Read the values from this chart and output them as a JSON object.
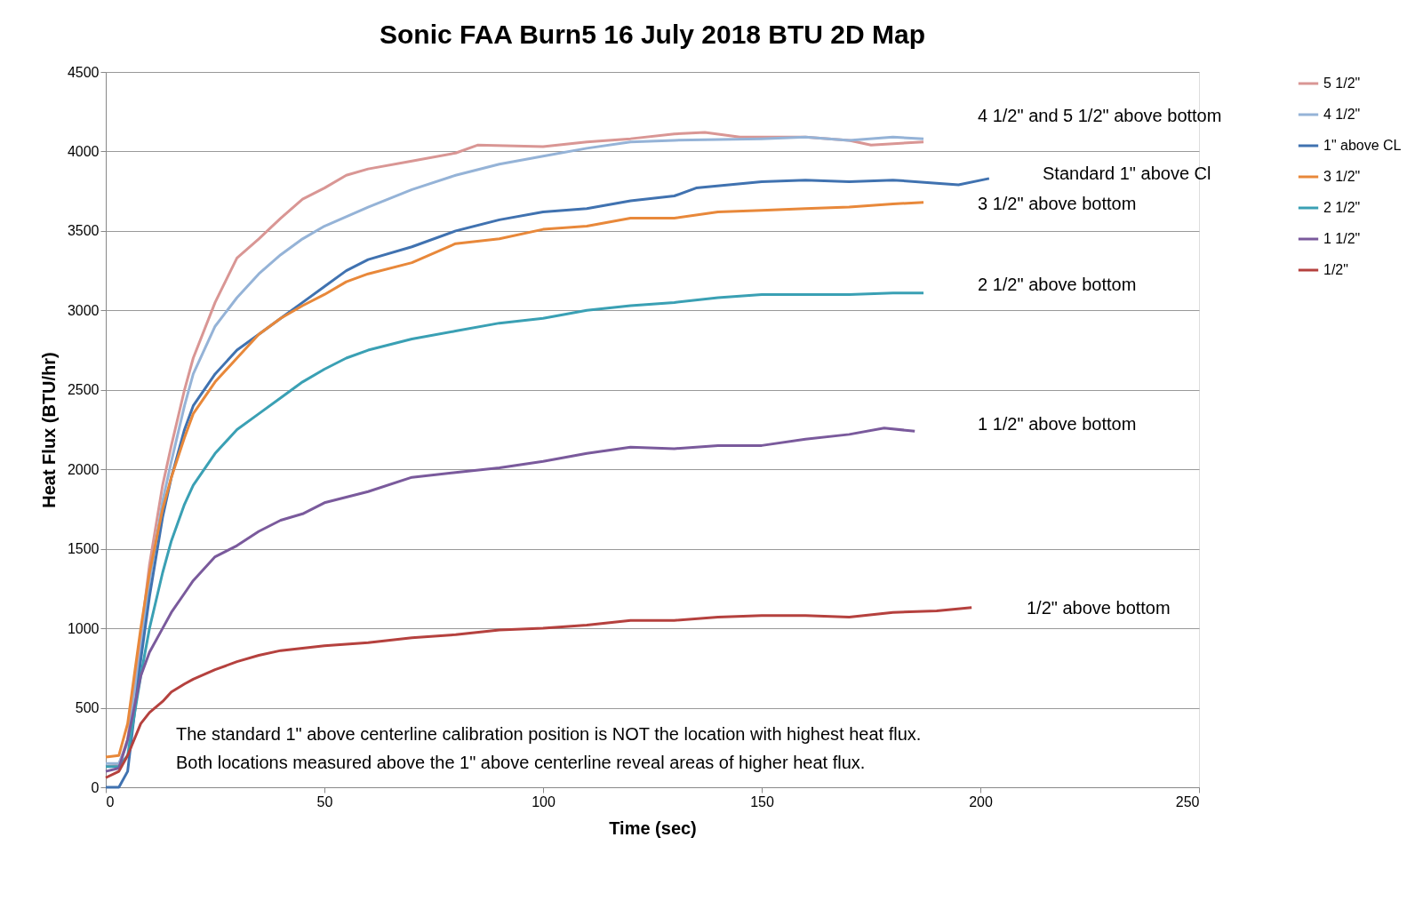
{
  "chart_data": {
    "type": "line",
    "title": "Sonic FAA Burn5 16 July 2018 BTU 2D Map",
    "xlabel": "Time (sec)",
    "ylabel": "Heat Flux (BTU/hr)",
    "xlim": [
      0,
      250
    ],
    "xticks": [
      0,
      50,
      100,
      150,
      200,
      250
    ],
    "ylim": [
      0,
      4500
    ],
    "yticks": [
      0,
      500,
      1000,
      1500,
      2000,
      2500,
      3000,
      3500,
      4000,
      4500
    ],
    "grid": "y",
    "legend": "right",
    "marker": "none",
    "line_style": "solid",
    "series": [
      {
        "name": "5 1/2\"",
        "color": "#d99694",
        "x": [
          0,
          3,
          5,
          8,
          10,
          13,
          15,
          18,
          20,
          25,
          30,
          35,
          40,
          45,
          50,
          55,
          60,
          70,
          80,
          85,
          100,
          110,
          120,
          130,
          137,
          145,
          160,
          170,
          175,
          187
        ],
        "values": [
          130,
          140,
          300,
          950,
          1400,
          1900,
          2150,
          2500,
          2700,
          3050,
          3330,
          3450,
          3580,
          3700,
          3770,
          3850,
          3890,
          3940,
          3990,
          4040,
          4030,
          4060,
          4080,
          4110,
          4120,
          4090,
          4090,
          4070,
          4040,
          4060
        ]
      },
      {
        "name": "4 1/2\"",
        "color": "#95b3d7",
        "x": [
          0,
          3,
          5,
          8,
          10,
          13,
          15,
          18,
          20,
          25,
          30,
          35,
          40,
          45,
          50,
          60,
          70,
          80,
          90,
          100,
          110,
          120,
          130,
          150,
          160,
          170,
          180,
          187
        ],
        "values": [
          150,
          150,
          280,
          850,
          1300,
          1800,
          2050,
          2400,
          2600,
          2900,
          3080,
          3230,
          3350,
          3450,
          3530,
          3650,
          3760,
          3850,
          3920,
          3970,
          4020,
          4060,
          4070,
          4080,
          4090,
          4070,
          4090,
          4080
        ]
      },
      {
        "name": "1\" above CL",
        "color": "#4072b0",
        "x": [
          0,
          3,
          5,
          8,
          10,
          13,
          15,
          18,
          20,
          25,
          30,
          35,
          40,
          45,
          50,
          55,
          60,
          70,
          80,
          90,
          100,
          110,
          120,
          130,
          135,
          150,
          160,
          170,
          180,
          190,
          195,
          202
        ],
        "values": [
          0,
          0,
          100,
          800,
          1200,
          1700,
          1950,
          2250,
          2400,
          2600,
          2750,
          2850,
          2950,
          3050,
          3150,
          3250,
          3320,
          3400,
          3500,
          3570,
          3620,
          3640,
          3690,
          3720,
          3770,
          3810,
          3820,
          3810,
          3820,
          3800,
          3790,
          3830
        ]
      },
      {
        "name": "3 1/2\"",
        "color": "#e8883a",
        "x": [
          0,
          3,
          5,
          8,
          10,
          13,
          15,
          18,
          20,
          25,
          30,
          35,
          40,
          45,
          50,
          55,
          60,
          70,
          80,
          90,
          100,
          110,
          120,
          130,
          140,
          150,
          160,
          170,
          180,
          187
        ],
        "values": [
          190,
          200,
          400,
          1000,
          1350,
          1750,
          1950,
          2200,
          2350,
          2550,
          2700,
          2850,
          2950,
          3030,
          3100,
          3180,
          3230,
          3300,
          3420,
          3450,
          3510,
          3530,
          3580,
          3580,
          3620,
          3630,
          3640,
          3650,
          3670,
          3680
        ]
      },
      {
        "name": "2 1/2\"",
        "color": "#3aa0b4",
        "x": [
          0,
          3,
          5,
          8,
          10,
          13,
          15,
          18,
          20,
          25,
          30,
          35,
          40,
          45,
          50,
          55,
          60,
          70,
          80,
          90,
          100,
          110,
          120,
          130,
          140,
          150,
          160,
          170,
          180,
          187
        ],
        "values": [
          130,
          130,
          200,
          700,
          1000,
          1350,
          1550,
          1780,
          1900,
          2100,
          2250,
          2350,
          2450,
          2550,
          2630,
          2700,
          2750,
          2820,
          2870,
          2920,
          2950,
          3000,
          3030,
          3050,
          3080,
          3100,
          3100,
          3100,
          3110,
          3110
        ]
      },
      {
        "name": "1 1/2\"",
        "color": "#7a5a9c",
        "x": [
          0,
          3,
          5,
          8,
          10,
          13,
          15,
          18,
          20,
          25,
          30,
          35,
          40,
          45,
          50,
          60,
          70,
          80,
          90,
          100,
          110,
          120,
          130,
          140,
          150,
          160,
          170,
          178,
          185
        ],
        "values": [
          100,
          120,
          300,
          700,
          850,
          1000,
          1100,
          1220,
          1300,
          1450,
          1520,
          1610,
          1680,
          1720,
          1790,
          1860,
          1950,
          1980,
          2010,
          2050,
          2100,
          2140,
          2130,
          2150,
          2150,
          2190,
          2220,
          2260,
          2240
        ]
      },
      {
        "name": "1/2\"",
        "color": "#b5413e",
        "x": [
          0,
          3,
          5,
          8,
          10,
          13,
          15,
          18,
          20,
          25,
          30,
          35,
          40,
          50,
          60,
          70,
          80,
          90,
          100,
          110,
          120,
          130,
          140,
          150,
          160,
          170,
          180,
          190,
          198
        ],
        "values": [
          60,
          100,
          200,
          400,
          470,
          540,
          600,
          650,
          680,
          740,
          790,
          830,
          860,
          890,
          910,
          940,
          960,
          990,
          1000,
          1020,
          1050,
          1050,
          1070,
          1080,
          1080,
          1070,
          1100,
          1110,
          1130
        ]
      }
    ],
    "annotations": [
      "4 1/2\" and 5 1/2\" above bottom",
      "Standard 1\" above Cl",
      "3 1/2\" above bottom",
      "2 1/2\" above bottom",
      "1 1/2\" above bottom",
      "1/2\" above bottom",
      "The standard 1\" above centerline calibration position is NOT the location with highest heat flux.",
      "Both locations measured above the 1\" above centerline reveal areas of higher heat flux."
    ]
  }
}
